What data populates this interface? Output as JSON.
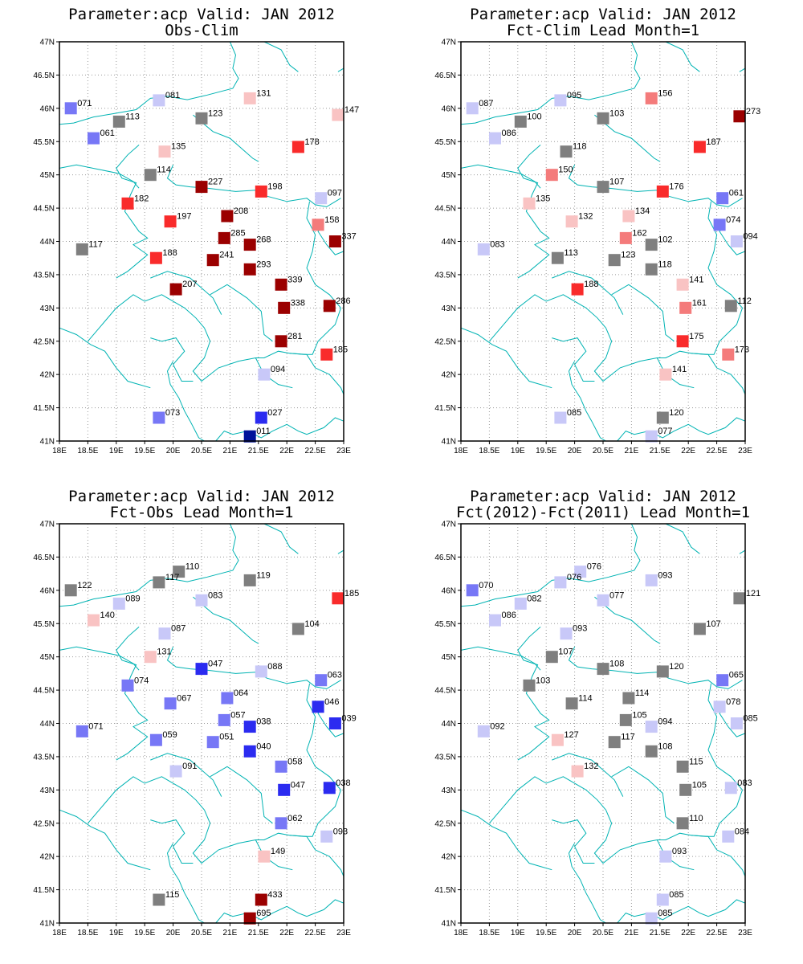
{
  "colors": {
    "blue_dark": "#00139b",
    "blue": "#2b2bf0",
    "blue_mid": "#7777f6",
    "blue_light": "#c8c8f8",
    "grey": "#7f7f7f",
    "red_light": "#f9c3c3",
    "red_mid": "#f47b7b",
    "red": "#f92b2b",
    "red_dark": "#9b0000",
    "coast": "#00b3b3"
  },
  "axes": {
    "lon_ticks": [
      "18E",
      "18.5E",
      "19E",
      "19.5E",
      "20E",
      "20.5E",
      "21E",
      "21.5E",
      "22E",
      "22.5E",
      "23E"
    ],
    "lat_ticks": [
      "41N",
      "41.5N",
      "42N",
      "42.5N",
      "43N",
      "43.5N",
      "44N",
      "44.5N",
      "45N",
      "45.5N",
      "46N",
      "46.5N",
      "47N"
    ],
    "lon_range": [
      18,
      23
    ],
    "lat_range": [
      41,
      47
    ]
  },
  "panels": [
    {
      "title1": "Parameter:acp Valid: JAN 2012",
      "title2": "Obs-Clim",
      "points": [
        {
          "lon": 18.2,
          "lat": 46.0,
          "label": "071",
          "color": "blue_mid"
        },
        {
          "lon": 19.75,
          "lat": 46.12,
          "label": "081",
          "color": "blue_light"
        },
        {
          "lon": 21.35,
          "lat": 46.15,
          "label": "131",
          "color": "red_light"
        },
        {
          "lon": 22.9,
          "lat": 45.9,
          "label": "147",
          "color": "red_light"
        },
        {
          "lon": 19.05,
          "lat": 45.8,
          "label": "113",
          "color": "grey"
        },
        {
          "lon": 20.5,
          "lat": 45.85,
          "label": "123",
          "color": "grey"
        },
        {
          "lon": 18.6,
          "lat": 45.55,
          "label": "061",
          "color": "blue_mid"
        },
        {
          "lon": 19.85,
          "lat": 45.35,
          "label": "135",
          "color": "red_light"
        },
        {
          "lon": 22.2,
          "lat": 45.42,
          "label": "178",
          "color": "red"
        },
        {
          "lon": 19.6,
          "lat": 45.0,
          "label": "114",
          "color": "grey"
        },
        {
          "lon": 20.5,
          "lat": 44.82,
          "label": "227",
          "color": "red_dark"
        },
        {
          "lon": 21.55,
          "lat": 44.75,
          "label": "198",
          "color": "red"
        },
        {
          "lon": 22.6,
          "lat": 44.65,
          "label": "097",
          "color": "blue_light"
        },
        {
          "lon": 19.2,
          "lat": 44.57,
          "label": "182",
          "color": "red"
        },
        {
          "lon": 19.95,
          "lat": 44.3,
          "label": "197",
          "color": "red"
        },
        {
          "lon": 20.95,
          "lat": 44.38,
          "label": "208",
          "color": "red_dark"
        },
        {
          "lon": 22.55,
          "lat": 44.25,
          "label": "158",
          "color": "red_mid"
        },
        {
          "lon": 20.9,
          "lat": 44.05,
          "label": "285",
          "color": "red_dark"
        },
        {
          "lon": 21.35,
          "lat": 43.95,
          "label": "268",
          "color": "red_dark"
        },
        {
          "lon": 22.85,
          "lat": 44.0,
          "label": "337",
          "color": "red_dark"
        },
        {
          "lon": 18.4,
          "lat": 43.88,
          "label": "117",
          "color": "grey"
        },
        {
          "lon": 19.7,
          "lat": 43.75,
          "label": "188",
          "color": "red"
        },
        {
          "lon": 20.7,
          "lat": 43.72,
          "label": "241",
          "color": "red_dark"
        },
        {
          "lon": 21.35,
          "lat": 43.58,
          "label": "293",
          "color": "red_dark"
        },
        {
          "lon": 21.9,
          "lat": 43.35,
          "label": "339",
          "color": "red_dark"
        },
        {
          "lon": 20.05,
          "lat": 43.28,
          "label": "207",
          "color": "red_dark"
        },
        {
          "lon": 21.95,
          "lat": 43.0,
          "label": "338",
          "color": "red_dark"
        },
        {
          "lon": 22.75,
          "lat": 43.03,
          "label": "286",
          "color": "red_dark"
        },
        {
          "lon": 21.9,
          "lat": 42.5,
          "label": "281",
          "color": "red_dark"
        },
        {
          "lon": 22.7,
          "lat": 42.3,
          "label": "185",
          "color": "red"
        },
        {
          "lon": 21.6,
          "lat": 42.0,
          "label": "094",
          "color": "blue_light"
        },
        {
          "lon": 19.75,
          "lat": 41.35,
          "label": "073",
          "color": "blue_mid"
        },
        {
          "lon": 21.55,
          "lat": 41.35,
          "label": "027",
          "color": "blue"
        },
        {
          "lon": 21.35,
          "lat": 41.07,
          "label": "011",
          "color": "blue_dark"
        }
      ]
    },
    {
      "title1": "Parameter:acp Valid: JAN 2012",
      "title2": "Fct-Clim Lead Month=1",
      "points": [
        {
          "lon": 18.2,
          "lat": 46.0,
          "label": "087",
          "color": "blue_light"
        },
        {
          "lon": 19.75,
          "lat": 46.12,
          "label": "095",
          "color": "blue_light"
        },
        {
          "lon": 21.35,
          "lat": 46.15,
          "label": "156",
          "color": "red_mid"
        },
        {
          "lon": 22.9,
          "lat": 45.88,
          "label": "273",
          "color": "red_dark"
        },
        {
          "lon": 19.05,
          "lat": 45.8,
          "label": "100",
          "color": "grey"
        },
        {
          "lon": 20.5,
          "lat": 45.85,
          "label": "103",
          "color": "grey"
        },
        {
          "lon": 18.6,
          "lat": 45.55,
          "label": "086",
          "color": "blue_light"
        },
        {
          "lon": 19.85,
          "lat": 45.35,
          "label": "118",
          "color": "grey"
        },
        {
          "lon": 22.2,
          "lat": 45.42,
          "label": "187",
          "color": "red"
        },
        {
          "lon": 19.6,
          "lat": 45.0,
          "label": "150",
          "color": "red_mid"
        },
        {
          "lon": 20.5,
          "lat": 44.82,
          "label": "107",
          "color": "grey"
        },
        {
          "lon": 21.55,
          "lat": 44.75,
          "label": "176",
          "color": "red"
        },
        {
          "lon": 22.6,
          "lat": 44.65,
          "label": "061",
          "color": "blue_mid"
        },
        {
          "lon": 19.2,
          "lat": 44.57,
          "label": "135",
          "color": "red_light"
        },
        {
          "lon": 19.95,
          "lat": 44.3,
          "label": "132",
          "color": "red_light"
        },
        {
          "lon": 20.95,
          "lat": 44.38,
          "label": "134",
          "color": "red_light"
        },
        {
          "lon": 22.55,
          "lat": 44.25,
          "label": "074",
          "color": "blue_mid"
        },
        {
          "lon": 20.9,
          "lat": 44.05,
          "label": "162",
          "color": "red_mid"
        },
        {
          "lon": 21.35,
          "lat": 43.95,
          "label": "102",
          "color": "grey"
        },
        {
          "lon": 22.85,
          "lat": 44.0,
          "label": "094",
          "color": "blue_light"
        },
        {
          "lon": 18.4,
          "lat": 43.88,
          "label": "083",
          "color": "blue_light"
        },
        {
          "lon": 19.7,
          "lat": 43.75,
          "label": "113",
          "color": "grey"
        },
        {
          "lon": 20.7,
          "lat": 43.72,
          "label": "123",
          "color": "grey"
        },
        {
          "lon": 21.35,
          "lat": 43.58,
          "label": "118",
          "color": "grey"
        },
        {
          "lon": 21.9,
          "lat": 43.35,
          "label": "141",
          "color": "red_light"
        },
        {
          "lon": 20.05,
          "lat": 43.28,
          "label": "188",
          "color": "red"
        },
        {
          "lon": 21.95,
          "lat": 43.0,
          "label": "161",
          "color": "red_mid"
        },
        {
          "lon": 22.75,
          "lat": 43.03,
          "label": "112",
          "color": "grey"
        },
        {
          "lon": 21.9,
          "lat": 42.5,
          "label": "175",
          "color": "red"
        },
        {
          "lon": 22.7,
          "lat": 42.3,
          "label": "173",
          "color": "red_mid"
        },
        {
          "lon": 21.6,
          "lat": 42.0,
          "label": "141",
          "color": "red_light"
        },
        {
          "lon": 19.75,
          "lat": 41.35,
          "label": "085",
          "color": "blue_light"
        },
        {
          "lon": 21.55,
          "lat": 41.35,
          "label": "120",
          "color": "grey"
        },
        {
          "lon": 21.35,
          "lat": 41.07,
          "label": "077",
          "color": "blue_light"
        }
      ]
    },
    {
      "title1": "Parameter:acp Valid: JAN 2012",
      "title2": "Fct-Obs Lead Month=1",
      "points": [
        {
          "lon": 18.2,
          "lat": 46.0,
          "label": "122",
          "color": "grey"
        },
        {
          "lon": 20.1,
          "lat": 46.28,
          "label": "110",
          "color": "grey"
        },
        {
          "lon": 19.75,
          "lat": 46.12,
          "label": "117",
          "color": "grey"
        },
        {
          "lon": 21.35,
          "lat": 46.15,
          "label": "119",
          "color": "grey"
        },
        {
          "lon": 22.9,
          "lat": 45.88,
          "label": "185",
          "color": "red"
        },
        {
          "lon": 19.05,
          "lat": 45.8,
          "label": "089",
          "color": "blue_light"
        },
        {
          "lon": 20.5,
          "lat": 45.85,
          "label": "083",
          "color": "blue_light"
        },
        {
          "lon": 18.6,
          "lat": 45.55,
          "label": "140",
          "color": "red_light"
        },
        {
          "lon": 22.2,
          "lat": 45.42,
          "label": "104",
          "color": "grey"
        },
        {
          "lon": 19.85,
          "lat": 45.35,
          "label": "087",
          "color": "blue_light"
        },
        {
          "lon": 19.6,
          "lat": 45.0,
          "label": "131",
          "color": "red_light"
        },
        {
          "lon": 20.5,
          "lat": 44.82,
          "label": "047",
          "color": "blue"
        },
        {
          "lon": 21.55,
          "lat": 44.78,
          "label": "088",
          "color": "blue_light"
        },
        {
          "lon": 22.6,
          "lat": 44.65,
          "label": "063",
          "color": "blue_mid"
        },
        {
          "lon": 19.2,
          "lat": 44.57,
          "label": "074",
          "color": "blue_mid"
        },
        {
          "lon": 19.95,
          "lat": 44.3,
          "label": "067",
          "color": "blue_mid"
        },
        {
          "lon": 20.95,
          "lat": 44.38,
          "label": "064",
          "color": "blue_mid"
        },
        {
          "lon": 22.55,
          "lat": 44.25,
          "label": "046",
          "color": "blue"
        },
        {
          "lon": 20.9,
          "lat": 44.05,
          "label": "057",
          "color": "blue_mid"
        },
        {
          "lon": 21.35,
          "lat": 43.95,
          "label": "038",
          "color": "blue"
        },
        {
          "lon": 22.85,
          "lat": 44.0,
          "label": "039",
          "color": "blue"
        },
        {
          "lon": 18.4,
          "lat": 43.88,
          "label": "071",
          "color": "blue_mid"
        },
        {
          "lon": 19.7,
          "lat": 43.75,
          "label": "059",
          "color": "blue_mid"
        },
        {
          "lon": 20.7,
          "lat": 43.72,
          "label": "051",
          "color": "blue_mid"
        },
        {
          "lon": 21.35,
          "lat": 43.58,
          "label": "040",
          "color": "blue"
        },
        {
          "lon": 21.9,
          "lat": 43.35,
          "label": "058",
          "color": "blue_mid"
        },
        {
          "lon": 20.05,
          "lat": 43.28,
          "label": "091",
          "color": "blue_light"
        },
        {
          "lon": 21.95,
          "lat": 43.0,
          "label": "047",
          "color": "blue"
        },
        {
          "lon": 22.75,
          "lat": 43.03,
          "label": "038",
          "color": "blue"
        },
        {
          "lon": 21.9,
          "lat": 42.5,
          "label": "062",
          "color": "blue_mid"
        },
        {
          "lon": 22.7,
          "lat": 42.3,
          "label": "093",
          "color": "blue_light"
        },
        {
          "lon": 21.6,
          "lat": 42.0,
          "label": "149",
          "color": "red_light"
        },
        {
          "lon": 19.75,
          "lat": 41.35,
          "label": "115",
          "color": "grey"
        },
        {
          "lon": 21.55,
          "lat": 41.35,
          "label": "433",
          "color": "red_dark"
        },
        {
          "lon": 21.35,
          "lat": 41.07,
          "label": "695",
          "color": "red_dark"
        }
      ]
    },
    {
      "title1": "Parameter:acp Valid: JAN 2012",
      "title2": "Fct(2012)-Fct(2011) Lead Month=1",
      "points": [
        {
          "lon": 18.2,
          "lat": 46.0,
          "label": "070",
          "color": "blue_mid"
        },
        {
          "lon": 20.1,
          "lat": 46.28,
          "label": "076",
          "color": "blue_light"
        },
        {
          "lon": 19.75,
          "lat": 46.12,
          "label": "076",
          "color": "blue_light"
        },
        {
          "lon": 21.35,
          "lat": 46.15,
          "label": "093",
          "color": "blue_light"
        },
        {
          "lon": 22.9,
          "lat": 45.88,
          "label": "121",
          "color": "grey"
        },
        {
          "lon": 19.05,
          "lat": 45.8,
          "label": "082",
          "color": "blue_light"
        },
        {
          "lon": 20.5,
          "lat": 45.85,
          "label": "077",
          "color": "blue_light"
        },
        {
          "lon": 18.6,
          "lat": 45.55,
          "label": "086",
          "color": "blue_light"
        },
        {
          "lon": 22.2,
          "lat": 45.42,
          "label": "107",
          "color": "grey"
        },
        {
          "lon": 19.85,
          "lat": 45.35,
          "label": "093",
          "color": "blue_light"
        },
        {
          "lon": 19.6,
          "lat": 45.0,
          "label": "107",
          "color": "grey"
        },
        {
          "lon": 20.5,
          "lat": 44.82,
          "label": "108",
          "color": "grey"
        },
        {
          "lon": 21.55,
          "lat": 44.78,
          "label": "120",
          "color": "grey"
        },
        {
          "lon": 22.6,
          "lat": 44.65,
          "label": "065",
          "color": "blue_mid"
        },
        {
          "lon": 19.2,
          "lat": 44.57,
          "label": "103",
          "color": "grey"
        },
        {
          "lon": 19.95,
          "lat": 44.3,
          "label": "114",
          "color": "grey"
        },
        {
          "lon": 20.95,
          "lat": 44.38,
          "label": "114",
          "color": "grey"
        },
        {
          "lon": 22.55,
          "lat": 44.25,
          "label": "078",
          "color": "blue_light"
        },
        {
          "lon": 20.9,
          "lat": 44.05,
          "label": "105",
          "color": "grey"
        },
        {
          "lon": 21.35,
          "lat": 43.95,
          "label": "094",
          "color": "blue_light"
        },
        {
          "lon": 22.85,
          "lat": 44.0,
          "label": "085",
          "color": "blue_light"
        },
        {
          "lon": 18.4,
          "lat": 43.88,
          "label": "092",
          "color": "blue_light"
        },
        {
          "lon": 19.7,
          "lat": 43.75,
          "label": "127",
          "color": "red_light"
        },
        {
          "lon": 20.7,
          "lat": 43.72,
          "label": "117",
          "color": "grey"
        },
        {
          "lon": 21.35,
          "lat": 43.58,
          "label": "108",
          "color": "grey"
        },
        {
          "lon": 21.9,
          "lat": 43.35,
          "label": "115",
          "color": "grey"
        },
        {
          "lon": 20.05,
          "lat": 43.28,
          "label": "132",
          "color": "red_light"
        },
        {
          "lon": 21.95,
          "lat": 43.0,
          "label": "105",
          "color": "grey"
        },
        {
          "lon": 22.75,
          "lat": 43.03,
          "label": "083",
          "color": "blue_light"
        },
        {
          "lon": 21.9,
          "lat": 42.5,
          "label": "110",
          "color": "grey"
        },
        {
          "lon": 22.7,
          "lat": 42.3,
          "label": "084",
          "color": "blue_light"
        },
        {
          "lon": 21.6,
          "lat": 42.0,
          "label": "093",
          "color": "blue_light"
        },
        {
          "lon": 21.55,
          "lat": 41.35,
          "label": "085",
          "color": "blue_light"
        },
        {
          "lon": 21.35,
          "lat": 41.07,
          "label": "085",
          "color": "blue_light"
        }
      ]
    }
  ]
}
